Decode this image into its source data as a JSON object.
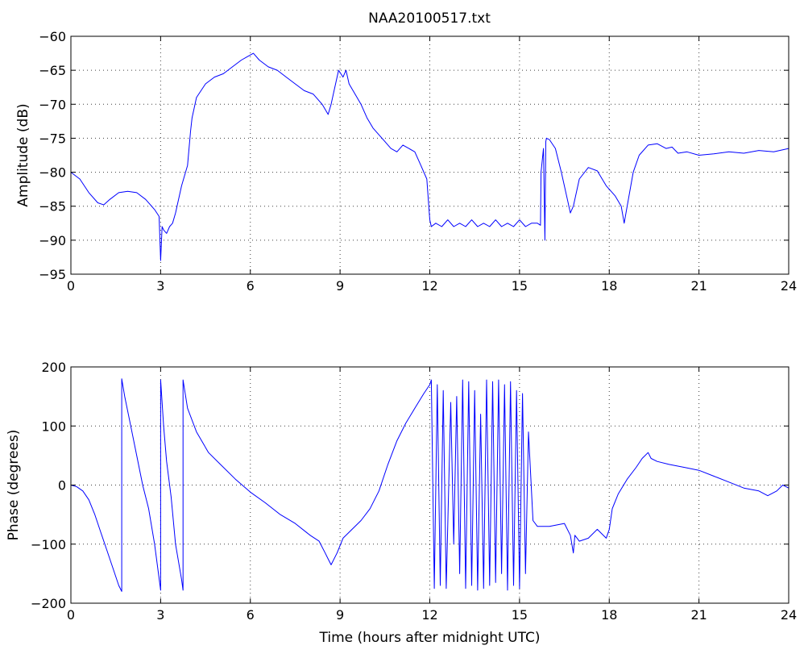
{
  "chart_data": [
    {
      "type": "line",
      "title": "NAA20100517.txt",
      "xlabel": "",
      "ylabel": "Amplitude (dB)",
      "xlim": [
        0,
        24
      ],
      "ylim": [
        -95,
        -60
      ],
      "xticks": [
        0,
        3,
        6,
        9,
        12,
        15,
        18,
        21,
        24
      ],
      "yticks": [
        -95,
        -90,
        -85,
        -80,
        -75,
        -70,
        -65,
        -60
      ],
      "grid": true,
      "color": "#0000ff",
      "series": [
        {
          "x": [
            0,
            0.3,
            0.6,
            0.9,
            1.1,
            1.3,
            1.6,
            1.9,
            2.2,
            2.5,
            2.8,
            2.95,
            3.0,
            3.05,
            3.1,
            3.2,
            3.3,
            3.4,
            3.5,
            3.7,
            3.9,
            4.0,
            4.05,
            4.2,
            4.5,
            4.8,
            5.1,
            5.4,
            5.7,
            5.9,
            6.1,
            6.3,
            6.6,
            6.9,
            7.2,
            7.5,
            7.8,
            8.1,
            8.4,
            8.6,
            8.7,
            8.8,
            8.95,
            9.1,
            9.2,
            9.3,
            9.5,
            9.7,
            9.9,
            10.1,
            10.3,
            10.5,
            10.7,
            10.9,
            11.1,
            11.3,
            11.5,
            11.7,
            11.9,
            12.0,
            12.05,
            12.2,
            12.4,
            12.6,
            12.8,
            13.0,
            13.2,
            13.4,
            13.6,
            13.8,
            14.0,
            14.2,
            14.4,
            14.6,
            14.8,
            15.0,
            15.2,
            15.4,
            15.6,
            15.7,
            15.72,
            15.8,
            15.85,
            15.88,
            15.9,
            16.0,
            16.2,
            16.4,
            16.6,
            16.7,
            16.8,
            17.0,
            17.3,
            17.6,
            17.9,
            18.2,
            18.4,
            18.5,
            18.6,
            18.8,
            19.0,
            19.3,
            19.6,
            19.9,
            20.1,
            20.3,
            20.6,
            21.0,
            21.5,
            22.0,
            22.5,
            23.0,
            23.5,
            24.0
          ],
          "y": [
            -80,
            -81,
            -83,
            -84.5,
            -84.8,
            -84,
            -83,
            -82.8,
            -83,
            -84,
            -85.5,
            -86.5,
            -93,
            -88,
            -88.5,
            -89,
            -88,
            -87.5,
            -86,
            -82,
            -79,
            -74,
            -72,
            -69,
            -67,
            -66,
            -65.5,
            -64.5,
            -63.5,
            -63,
            -62.5,
            -63.5,
            -64.5,
            -65,
            -66,
            -67,
            -68,
            -68.5,
            -70,
            -71.5,
            -70,
            -68,
            -65,
            -66,
            -65,
            -67,
            -68.5,
            -70,
            -72,
            -73.5,
            -74.5,
            -75.5,
            -76.5,
            -77,
            -76,
            -76.5,
            -77,
            -79,
            -81,
            -87,
            -88,
            -87.5,
            -88,
            -87,
            -88,
            -87.5,
            -88,
            -87,
            -88,
            -87.5,
            -88,
            -87,
            -88,
            -87.5,
            -88,
            -87,
            -88,
            -87.5,
            -87.5,
            -87.8,
            -80,
            -76.5,
            -90,
            -75.5,
            -75,
            -75.2,
            -76.5,
            -80,
            -84,
            -86,
            -85,
            -81,
            -79.3,
            -79.8,
            -82,
            -83.5,
            -85,
            -87.5,
            -85,
            -80,
            -77.5,
            -76,
            -75.8,
            -76.5,
            -76.3,
            -77.2,
            -77,
            -77.5,
            -77.3,
            -77,
            -77.2,
            -76.8,
            -77,
            -76.5
          ]
        }
      ]
    },
    {
      "type": "line",
      "title": "",
      "xlabel": "Time (hours after midnight UTC)",
      "ylabel": "Phase (degrees)",
      "xlim": [
        0,
        24
      ],
      "ylim": [
        -200,
        200
      ],
      "xticks": [
        0,
        3,
        6,
        9,
        12,
        15,
        18,
        21,
        24
      ],
      "yticks": [
        -200,
        -100,
        0,
        100,
        200
      ],
      "grid": true,
      "color": "#0000ff",
      "series": [
        {
          "x": [
            0,
            0.2,
            0.4,
            0.6,
            0.8,
            1.0,
            1.2,
            1.4,
            1.6,
            1.7,
            1.7,
            1.8,
            2.0,
            2.2,
            2.4,
            2.6,
            2.8,
            3.0,
            3.0,
            3.1,
            3.2,
            3.35,
            3.5,
            3.7,
            3.75,
            3.75,
            3.9,
            4.2,
            4.6,
            5.0,
            5.5,
            6.0,
            6.5,
            7.0,
            7.5,
            8.0,
            8.3,
            8.5,
            8.6,
            8.7,
            8.9,
            9.1,
            9.4,
            9.7,
            10.0,
            10.3,
            10.6,
            10.9,
            11.2,
            11.5,
            11.8,
            12.0,
            12.05,
            12.15,
            12.25,
            12.35,
            12.45,
            12.55,
            12.7,
            12.8,
            12.9,
            13.0,
            13.1,
            13.2,
            13.3,
            13.4,
            13.5,
            13.6,
            13.7,
            13.8,
            13.9,
            14.0,
            14.1,
            14.2,
            14.3,
            14.4,
            14.5,
            14.6,
            14.7,
            14.8,
            14.9,
            15.0,
            15.1,
            15.2,
            15.3,
            15.45,
            15.6,
            16.0,
            16.5,
            16.7,
            16.8,
            16.85,
            17.0,
            17.3,
            17.6,
            17.9,
            18.0,
            18.1,
            18.3,
            18.6,
            18.9,
            19.1,
            19.3,
            19.4,
            19.6,
            20.0,
            20.5,
            21.0,
            21.5,
            22.0,
            22.5,
            23.0,
            23.3,
            23.6,
            23.8,
            24.0
          ],
          "y": [
            0,
            -3,
            -10,
            -25,
            -50,
            -80,
            -110,
            -140,
            -170,
            -180,
            180,
            150,
            100,
            50,
            0,
            -40,
            -100,
            -178,
            178,
            100,
            40,
            -20,
            -100,
            -160,
            -178,
            178,
            130,
            90,
            55,
            35,
            10,
            -12,
            -30,
            -50,
            -65,
            -85,
            -95,
            -115,
            -125,
            -135,
            -115,
            -90,
            -75,
            -60,
            -40,
            -10,
            35,
            75,
            105,
            130,
            155,
            170,
            178,
            -175,
            170,
            -170,
            160,
            -175,
            140,
            -100,
            150,
            -150,
            178,
            -175,
            175,
            -170,
            160,
            -178,
            120,
            -175,
            178,
            -170,
            175,
            -165,
            178,
            -150,
            170,
            -178,
            175,
            -170,
            160,
            -175,
            155,
            -150,
            90,
            -60,
            -70,
            -70,
            -65,
            -85,
            -115,
            -85,
            -95,
            -90,
            -75,
            -90,
            -75,
            -40,
            -15,
            10,
            30,
            45,
            55,
            45,
            40,
            35,
            30,
            25,
            15,
            5,
            -5,
            -10,
            -18,
            -10,
            0,
            -5
          ]
        }
      ]
    }
  ]
}
